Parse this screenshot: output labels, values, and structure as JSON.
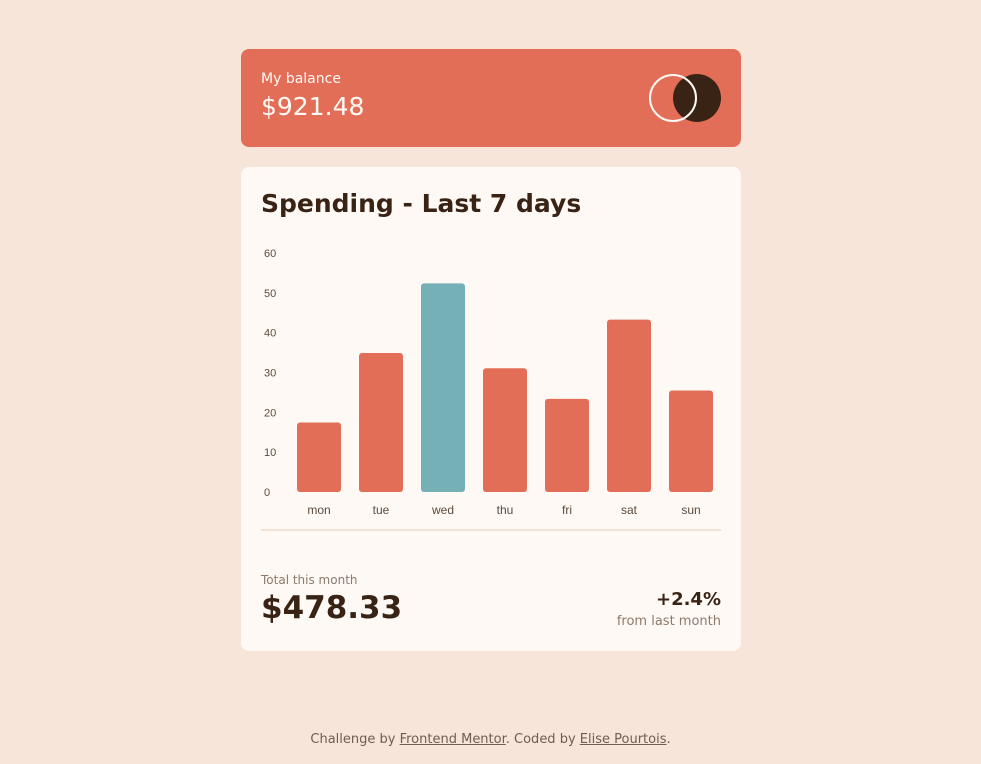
{
  "balance": {
    "label": "My balance",
    "amount": "$921.48"
  },
  "spending": {
    "title": "Spending - Last 7 days",
    "total_label": "Total this month",
    "total_amount": "$478.33",
    "change": "+2.4%",
    "change_label": "from last month"
  },
  "footer": {
    "prefix": "Challenge by ",
    "link1": "Frontend Mentor",
    "middle": ". Coded by ",
    "link2": "Elise Pourtois",
    "suffix": "."
  },
  "colors": {
    "bar": "#e36e58",
    "bar_highlight": "#75b0b6",
    "text": "#382314"
  },
  "chart_data": {
    "type": "bar",
    "categories": [
      "mon",
      "tue",
      "wed",
      "thu",
      "fri",
      "sat",
      "sun"
    ],
    "values": [
      17.45,
      34.91,
      52.36,
      31.07,
      23.39,
      43.28,
      25.48
    ],
    "highlight_index": 2,
    "ylim": [
      0,
      60
    ],
    "yticks": [
      0,
      10,
      20,
      30,
      40,
      50,
      60
    ],
    "grid": false,
    "title": "",
    "xlabel": "",
    "ylabel": ""
  }
}
